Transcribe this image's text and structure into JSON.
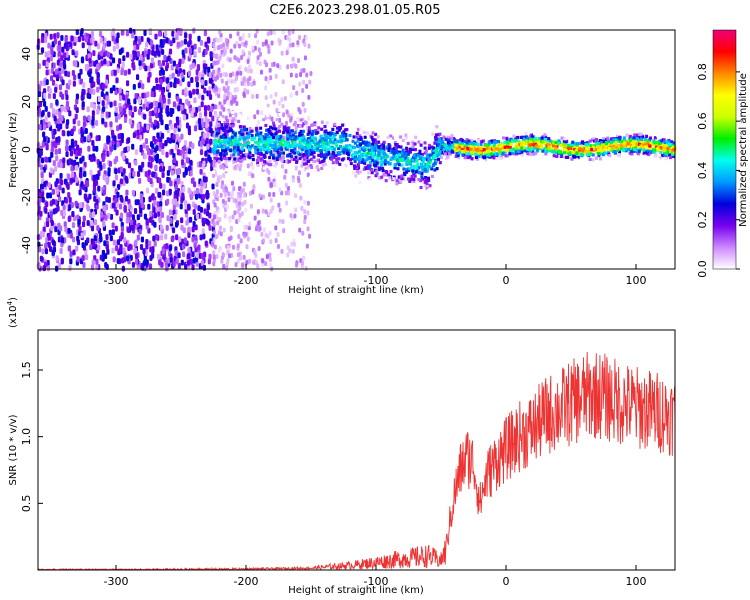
{
  "title": "C2E6.2023.298.01.05.R05",
  "chart_data": [
    {
      "type": "heatmap",
      "xlabel": "Height of straight line (km)",
      "ylabel": "Frequency (Hz)",
      "xlim": [
        -360,
        130
      ],
      "ylim": [
        -50,
        50
      ],
      "x_ticks": [
        -300,
        -200,
        -100,
        0,
        100
      ],
      "y_ticks": [
        -40,
        -20,
        0,
        20,
        40
      ],
      "colorbar": {
        "label": "Normalized spectral amplitude",
        "range": [
          0,
          0.97
        ],
        "ticks": [
          0.0,
          0.2,
          0.4,
          0.6,
          0.8
        ],
        "tick_labels": [
          "0.0",
          "0.2",
          "0.4",
          "0.6",
          "0.8"
        ],
        "colors": [
          "#ffffff",
          "#cc88ff",
          "#7700ee",
          "#0000dd",
          "#0099ff",
          "#00ffee",
          "#00ee00",
          "#ccff00",
          "#ffff00",
          "#ff8800",
          "#ff0000",
          "#ee0077"
        ]
      },
      "features": [
        {
          "region": "noise",
          "x_range": [
            -360,
            -225
          ],
          "amplitude": 0.22
        },
        {
          "region": "noise-fading",
          "x_range": [
            -225,
            -150
          ],
          "amplitude": 0.08
        },
        {
          "region": "signal-band",
          "x_range": [
            -225,
            130
          ],
          "center_frequency_hz": 0,
          "amplitude_peak": 0.85
        }
      ]
    },
    {
      "type": "line",
      "xlabel": "Height of straight line (km)",
      "ylabel": "SNR (10 * v/v)",
      "y_multiplier": "(x10",
      "y_multiplier_exponent": "4",
      "y_multiplier_close": ")",
      "xlim": [
        -360,
        130
      ],
      "ylim": [
        0,
        1.8
      ],
      "x_ticks": [
        -300,
        -200,
        -100,
        0,
        100
      ],
      "y_ticks": [
        0.5,
        1.0,
        1.5
      ],
      "y_tick_labels": [
        "0.5",
        "1.0",
        "1.5"
      ],
      "color": "#ee3333",
      "series": [
        {
          "x": [
            -360,
            -300,
            -200,
            -150,
            -120,
            -100,
            -80,
            -60,
            -50,
            -45,
            -40,
            -35,
            -30,
            -25,
            -20,
            -15,
            -10,
            -5,
            0,
            10,
            20,
            30,
            40,
            50,
            60,
            70,
            80,
            90,
            100,
            110,
            120,
            130
          ],
          "values": [
            0.0,
            0.0,
            0.01,
            0.02,
            0.05,
            0.08,
            0.12,
            0.15,
            0.1,
            0.25,
            0.55,
            0.75,
            0.85,
            0.8,
            0.5,
            0.7,
            0.78,
            0.85,
            0.9,
            1.0,
            1.05,
            1.15,
            1.2,
            1.25,
            1.3,
            1.32,
            1.28,
            1.25,
            1.22,
            1.2,
            1.18,
            1.15
          ]
        }
      ]
    }
  ]
}
